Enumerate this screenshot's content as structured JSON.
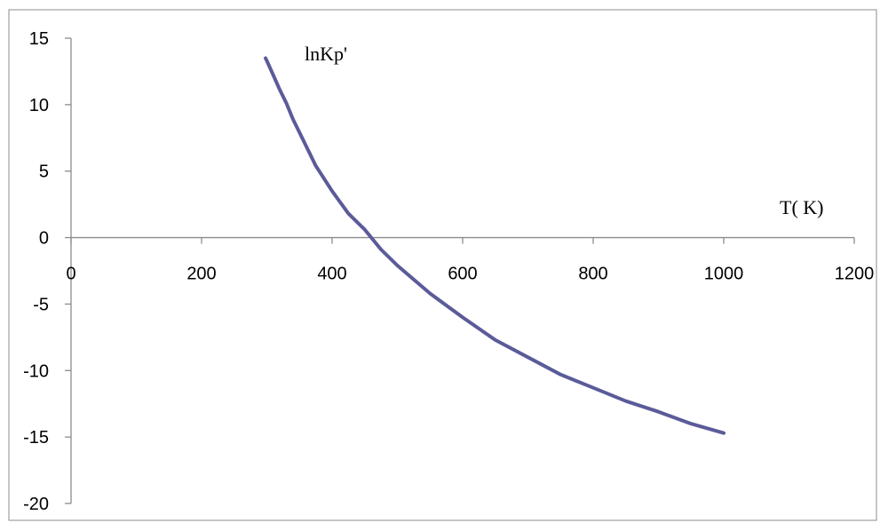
{
  "chart_data": {
    "type": "line",
    "title": "",
    "xlabel": "T( K)",
    "ylabel": "lnKp'",
    "xlim": [
      0,
      1200
    ],
    "ylim": [
      -20,
      15
    ],
    "xticks": [
      0,
      200,
      400,
      600,
      800,
      1000,
      1200
    ],
    "yticks": [
      15,
      10,
      5,
      0,
      -5,
      -10,
      -15,
      -20
    ],
    "grid": false,
    "legend": "none",
    "series": [
      {
        "color": "#5b5b9a",
        "x": [
          298,
          300,
          310,
          320,
          330,
          340,
          350,
          375,
          400,
          425,
          450,
          475,
          500,
          550,
          600,
          650,
          700,
          750,
          800,
          850,
          900,
          950,
          1000
        ],
        "y": [
          13.5,
          13.3,
          12.2,
          11.1,
          10.1,
          8.9,
          7.9,
          5.4,
          3.5,
          1.8,
          0.6,
          -0.9,
          -2.1,
          -4.2,
          -6.0,
          -7.7,
          -9.0,
          -10.3,
          -11.3,
          -12.3,
          -13.1,
          -14.0,
          -14.7
        ]
      }
    ]
  }
}
